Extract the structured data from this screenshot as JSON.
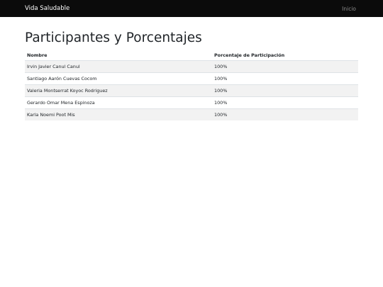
{
  "navbar": {
    "brand": "Vida Saludable",
    "link_home": "Inicio"
  },
  "page": {
    "title": "Participantes y Porcentajes"
  },
  "table": {
    "headers": [
      "Nombre",
      "Porcentaje de Participación"
    ],
    "rows": [
      {
        "name": "Irvin Javier Canul Canul",
        "percent": "100%"
      },
      {
        "name": "Santiago Aarón Cuevas Cocom",
        "percent": "100%"
      },
      {
        "name": "Valeria Montserrat Koyoc Rodriguez",
        "percent": "100%"
      },
      {
        "name": "Gerardo Omar Mena Espinoza",
        "percent": "100%"
      },
      {
        "name": "Karla Noemi Poot Mis",
        "percent": "100%"
      }
    ]
  }
}
